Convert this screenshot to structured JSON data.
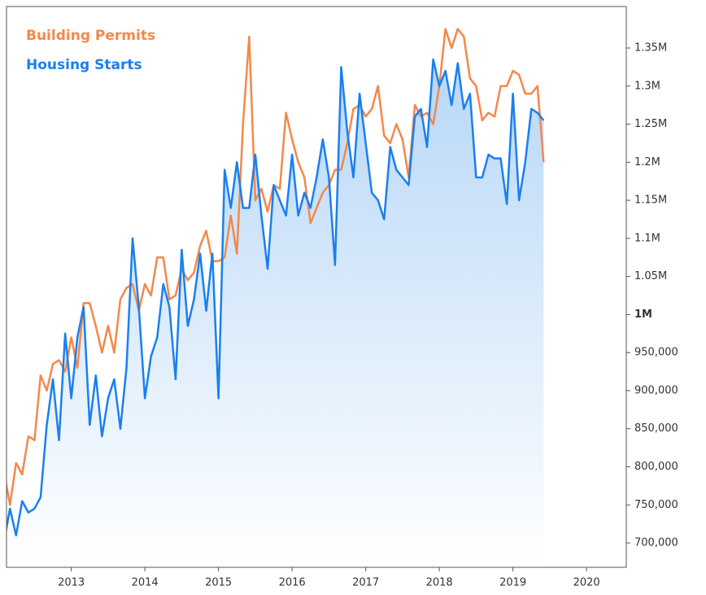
{
  "chart_data": {
    "type": "line",
    "x": [
      2012.083,
      2012.167,
      2012.25,
      2012.333,
      2012.417,
      2012.5,
      2012.583,
      2012.667,
      2012.75,
      2012.833,
      2012.917,
      2013,
      2013.083,
      2013.167,
      2013.25,
      2013.333,
      2013.417,
      2013.5,
      2013.583,
      2013.667,
      2013.75,
      2013.833,
      2013.917,
      2014,
      2014.083,
      2014.167,
      2014.25,
      2014.333,
      2014.417,
      2014.5,
      2014.583,
      2014.667,
      2014.75,
      2014.833,
      2014.917,
      2015,
      2015.083,
      2015.167,
      2015.25,
      2015.333,
      2015.417,
      2015.5,
      2015.583,
      2015.667,
      2015.75,
      2015.833,
      2015.917,
      2016,
      2016.083,
      2016.167,
      2016.25,
      2016.333,
      2016.417,
      2016.5,
      2016.583,
      2016.667,
      2016.75,
      2016.833,
      2016.917,
      2017,
      2017.083,
      2017.167,
      2017.25,
      2017.333,
      2017.417,
      2017.5,
      2017.583,
      2017.667,
      2017.75,
      2017.833,
      2017.917,
      2018,
      2018.083,
      2018.167,
      2018.25,
      2018.333,
      2018.417,
      2018.5,
      2018.583,
      2018.667,
      2018.75,
      2018.833,
      2018.917,
      2019,
      2019.083,
      2019.167,
      2019.25,
      2019.333,
      2019.417
    ],
    "series": [
      {
        "name": "Building Permits",
        "color": "#f4884a",
        "values": [
          795000,
          750000,
          805000,
          790000,
          840000,
          835000,
          920000,
          900000,
          935000,
          940000,
          925000,
          970000,
          930000,
          1015000,
          1015000,
          985000,
          950000,
          985000,
          950000,
          1020000,
          1035000,
          1040000,
          1005000,
          1040000,
          1025000,
          1075000,
          1075000,
          1020000,
          1025000,
          1060000,
          1045000,
          1055000,
          1090000,
          1110000,
          1070000,
          1070000,
          1075000,
          1130000,
          1080000,
          1250000,
          1365000,
          1150000,
          1165000,
          1135000,
          1170000,
          1165000,
          1265000,
          1230000,
          1200000,
          1180000,
          1120000,
          1140000,
          1160000,
          1170000,
          1190000,
          1190000,
          1225000,
          1270000,
          1275000,
          1260000,
          1270000,
          1300000,
          1235000,
          1225000,
          1250000,
          1230000,
          1180000,
          1275000,
          1260000,
          1265000,
          1250000,
          1300000,
          1375000,
          1350000,
          1375000,
          1365000,
          1310000,
          1300000,
          1255000,
          1265000,
          1260000,
          1300000,
          1300000,
          1320000,
          1315000,
          1290000,
          1290000,
          1300000,
          1200000
        ]
      },
      {
        "name": "Housing Starts",
        "color": "#1a7ff0",
        "values": [
          700000,
          745000,
          710000,
          755000,
          740000,
          745000,
          760000,
          855000,
          915000,
          835000,
          975000,
          890000,
          970000,
          1010000,
          855000,
          920000,
          840000,
          890000,
          915000,
          850000,
          930000,
          1100000,
          1010000,
          890000,
          945000,
          970000,
          1040000,
          1010000,
          915000,
          1085000,
          985000,
          1020000,
          1080000,
          1005000,
          1080000,
          890000,
          1190000,
          1140000,
          1200000,
          1140000,
          1140000,
          1210000,
          1130000,
          1060000,
          1170000,
          1150000,
          1130000,
          1210000,
          1130000,
          1160000,
          1140000,
          1180000,
          1230000,
          1180000,
          1065000,
          1325000,
          1240000,
          1180000,
          1290000,
          1225000,
          1160000,
          1150000,
          1125000,
          1220000,
          1190000,
          1180000,
          1170000,
          1260000,
          1270000,
          1220000,
          1335000,
          1300000,
          1320000,
          1275000,
          1330000,
          1270000,
          1290000,
          1180000,
          1180000,
          1210000,
          1205000,
          1205000,
          1145000,
          1290000,
          1150000,
          1200000,
          1270000,
          1265000,
          1255000
        ]
      }
    ],
    "xlim": [
      2012.12,
      2020.54
    ],
    "xticks": [
      2013,
      2014,
      2015,
      2016,
      2017,
      2018,
      2019,
      2020
    ],
    "ylim": [
      668000,
      1404500
    ],
    "yticks": [
      {
        "value": 700000,
        "label": "700,000"
      },
      {
        "value": 750000,
        "label": "750,000"
      },
      {
        "value": 800000,
        "label": "800,000"
      },
      {
        "value": 850000,
        "label": "850,000"
      },
      {
        "value": 900000,
        "label": "900,000"
      },
      {
        "value": 950000,
        "label": "950,000"
      },
      {
        "value": 1000000,
        "label": "1M"
      },
      {
        "value": 1050000,
        "label": "1.05M"
      },
      {
        "value": 1100000,
        "label": "1.1M"
      },
      {
        "value": 1150000,
        "label": "1.15M"
      },
      {
        "value": 1200000,
        "label": "1.2M"
      },
      {
        "value": 1250000,
        "label": "1.25M"
      },
      {
        "value": 1300000,
        "label": "1.3M"
      },
      {
        "value": 1350000,
        "label": "1.35M"
      }
    ],
    "y_axis_side": "right"
  }
}
